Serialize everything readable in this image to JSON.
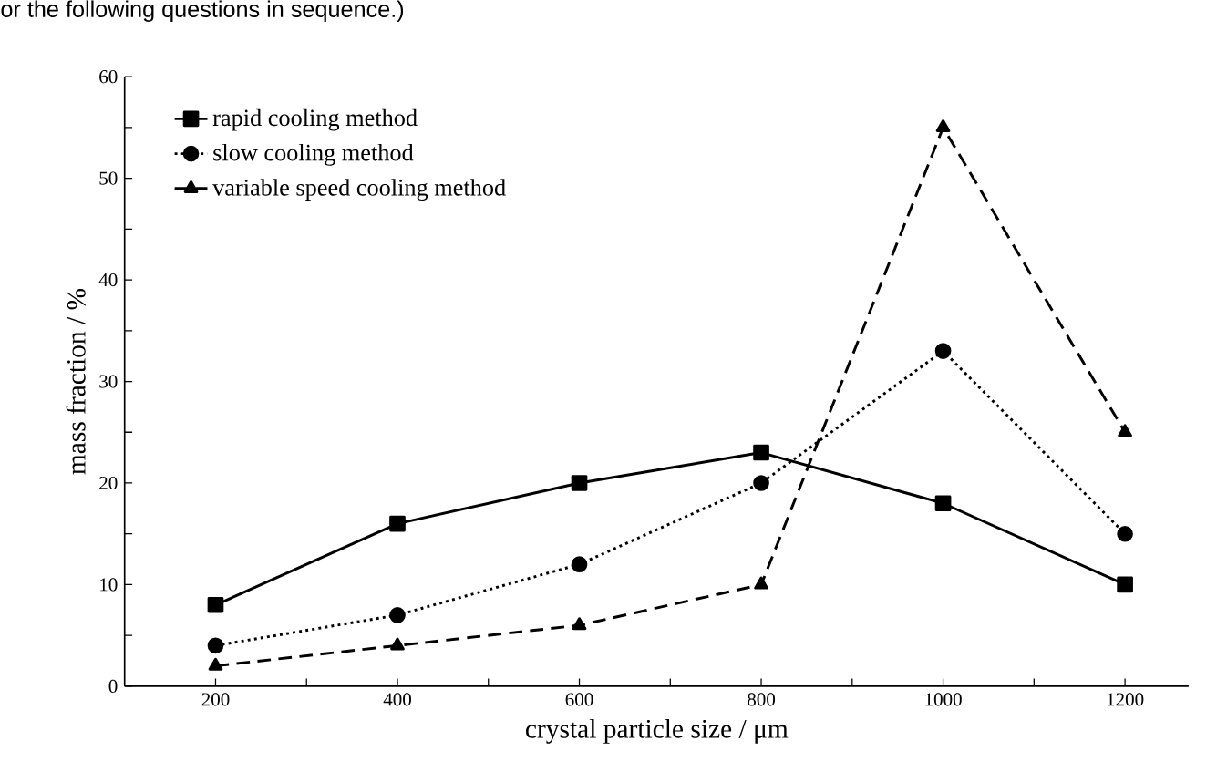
{
  "chart_data": {
    "type": "line",
    "xlabel": "crystal particle size / μm",
    "ylabel": "mass fraction / %",
    "annotations": [
      "or the following questions in sequence.)"
    ],
    "x": [
      200,
      400,
      600,
      800,
      1000,
      1200
    ],
    "series": [
      {
        "name": "rapid cooling method",
        "color": "#000000",
        "marker": "square",
        "line_style": "solid",
        "values": [
          8,
          16,
          20,
          23,
          18,
          10
        ]
      },
      {
        "name": "slow cooling method",
        "color": "#000000",
        "marker": "circle",
        "line_style": "dotted",
        "values": [
          4,
          7,
          12,
          20,
          33,
          15
        ]
      },
      {
        "name": "variable speed cooling method",
        "color": "#000000",
        "marker": "triangle",
        "line_style": "dashed",
        "values": [
          2,
          4,
          6,
          10,
          55,
          25
        ]
      }
    ],
    "xlim": [
      100,
      1270
    ],
    "ylim": [
      0,
      60
    ],
    "xticks": [
      200,
      400,
      600,
      800,
      1000,
      1200
    ],
    "yticks": [
      0,
      10,
      20,
      30,
      40,
      50,
      60
    ],
    "grid": false,
    "legend": "top left"
  }
}
